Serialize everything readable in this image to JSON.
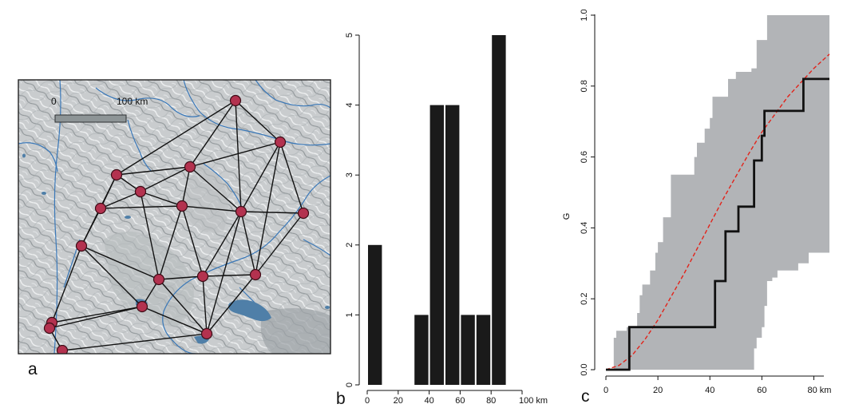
{
  "figure": {
    "panel_labels": {
      "a": "a",
      "b": "b",
      "c": "c"
    }
  },
  "map_panel": {
    "scale_bar": {
      "start_label": "0",
      "end_label": "100 km"
    },
    "colors": {
      "terrain": "#c9ccce",
      "rivers": "#3a78b8",
      "lakes": "#4f7fa8",
      "edges": "#111111",
      "nodes_fill": "#b3324f",
      "nodes_stroke": "#3d0d17",
      "scale_bar": "#8d9496"
    },
    "node_count": 20,
    "edge_count": 49
  },
  "chart_data": [
    {
      "type": "bar",
      "panel": "b",
      "bin_start": [
        0,
        30,
        40,
        50,
        60,
        70,
        80
      ],
      "bin_end": [
        10,
        40,
        50,
        60,
        70,
        80,
        90
      ],
      "values": [
        2,
        1,
        4,
        4,
        1,
        1,
        5
      ],
      "xlim": [
        0,
        100
      ],
      "ylim": [
        0,
        5
      ],
      "x_ticks": [
        "0",
        "20",
        "40",
        "60",
        "80",
        "100 km"
      ],
      "y_ticks": [
        "0",
        "1",
        "2",
        "3",
        "4",
        "5"
      ],
      "bar_color": "#1a1a1a"
    },
    {
      "type": "line",
      "panel": "c",
      "ylabel": "G",
      "xlim": [
        0,
        86
      ],
      "ylim": [
        0,
        1
      ],
      "x_ticks": [
        "0",
        "20",
        "40",
        "60",
        "80 km"
      ],
      "y_ticks": [
        "0.0",
        "0.2",
        "0.4",
        "0.6",
        "0.8",
        "1.0"
      ],
      "series": [
        {
          "style": "step",
          "color": "#111111",
          "points": [
            [
              0,
              0
            ],
            [
              9,
              0
            ],
            [
              9,
              0.12
            ],
            [
              42,
              0.12
            ],
            [
              42,
              0.25
            ],
            [
              46,
              0.25
            ],
            [
              46,
              0.39
            ],
            [
              51,
              0.39
            ],
            [
              51,
              0.46
            ],
            [
              57,
              0.46
            ],
            [
              57,
              0.59
            ],
            [
              60,
              0.59
            ],
            [
              60,
              0.66
            ],
            [
              61,
              0.66
            ],
            [
              61,
              0.73
            ],
            [
              76,
              0.73
            ],
            [
              76,
              0.82
            ],
            [
              86,
              0.82
            ]
          ]
        },
        {
          "style": "dashed",
          "color": "#e2231a",
          "points": [
            [
              0,
              0
            ],
            [
              5,
              0.012
            ],
            [
              10,
              0.04
            ],
            [
              15,
              0.085
            ],
            [
              20,
              0.14
            ],
            [
              25,
              0.205
            ],
            [
              30,
              0.27
            ],
            [
              35,
              0.34
            ],
            [
              40,
              0.41
            ],
            [
              45,
              0.48
            ],
            [
              50,
              0.545
            ],
            [
              55,
              0.61
            ],
            [
              60,
              0.67
            ],
            [
              65,
              0.72
            ],
            [
              70,
              0.77
            ],
            [
              75,
              0.81
            ],
            [
              80,
              0.85
            ],
            [
              86,
              0.89
            ]
          ]
        }
      ],
      "envelope": {
        "color": "#b2b4b7",
        "upper": [
          [
            0,
            0
          ],
          [
            3,
            0
          ],
          [
            3,
            0.09
          ],
          [
            4,
            0.09
          ],
          [
            4,
            0.11
          ],
          [
            8,
            0.11
          ],
          [
            8,
            0.12
          ],
          [
            12,
            0.12
          ],
          [
            12,
            0.16
          ],
          [
            13,
            0.16
          ],
          [
            13,
            0.21
          ],
          [
            14,
            0.21
          ],
          [
            14,
            0.24
          ],
          [
            17,
            0.24
          ],
          [
            17,
            0.28
          ],
          [
            19,
            0.28
          ],
          [
            19,
            0.33
          ],
          [
            20,
            0.33
          ],
          [
            20,
            0.36
          ],
          [
            22,
            0.36
          ],
          [
            22,
            0.43
          ],
          [
            25,
            0.43
          ],
          [
            25,
            0.55
          ],
          [
            34,
            0.55
          ],
          [
            34,
            0.6
          ],
          [
            35,
            0.6
          ],
          [
            35,
            0.64
          ],
          [
            38,
            0.64
          ],
          [
            38,
            0.68
          ],
          [
            40,
            0.68
          ],
          [
            40,
            0.71
          ],
          [
            41,
            0.71
          ],
          [
            41,
            0.77
          ],
          [
            47,
            0.77
          ],
          [
            47,
            0.82
          ],
          [
            50,
            0.82
          ],
          [
            50,
            0.84
          ],
          [
            56,
            0.84
          ],
          [
            56,
            0.85
          ],
          [
            58,
            0.85
          ],
          [
            58,
            0.93
          ],
          [
            62,
            0.93
          ],
          [
            62,
            1.0
          ],
          [
            86,
            1.0
          ]
        ],
        "lower": [
          [
            86,
            0.33
          ],
          [
            78,
            0.33
          ],
          [
            78,
            0.3
          ],
          [
            74,
            0.3
          ],
          [
            74,
            0.28
          ],
          [
            66,
            0.28
          ],
          [
            66,
            0.26
          ],
          [
            64,
            0.26
          ],
          [
            64,
            0.25
          ],
          [
            62,
            0.25
          ],
          [
            62,
            0.18
          ],
          [
            61,
            0.18
          ],
          [
            61,
            0.12
          ],
          [
            60,
            0.12
          ],
          [
            60,
            0.09
          ],
          [
            58,
            0.09
          ],
          [
            58,
            0.06
          ],
          [
            57,
            0.06
          ],
          [
            57,
            0
          ],
          [
            0,
            0
          ]
        ]
      }
    }
  ]
}
